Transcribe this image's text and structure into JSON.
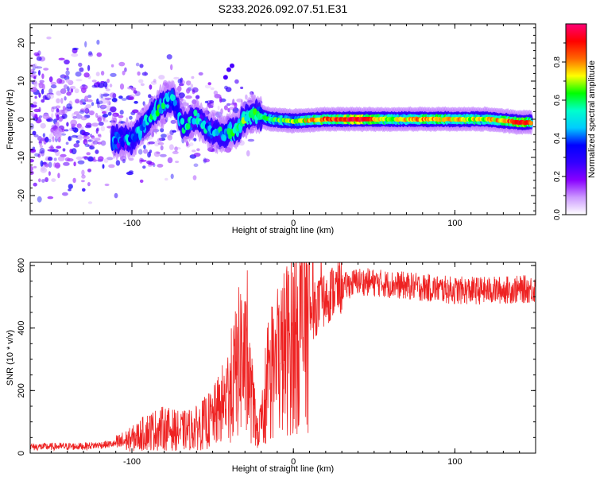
{
  "title": "S233.2026.092.07.51.E31",
  "chart_data": [
    {
      "type": "heatmap",
      "name": "spectrogram",
      "xlabel": "Height of straight line (km)",
      "ylabel": "Frequency (Hz)",
      "xlim": [
        -163,
        150
      ],
      "ylim": [
        -25,
        25
      ],
      "x_ticks": [
        -100,
        0,
        100
      ],
      "y_ticks": [
        -20,
        -10,
        0,
        10,
        20
      ],
      "colorbar": {
        "label": "Normalized spectral amplitude",
        "range": [
          0,
          1
        ],
        "ticks": [
          "0.0",
          "0.2",
          "0.4",
          "0.6",
          "0.8"
        ],
        "stops": [
          "#ffffff",
          "#cc99ff",
          "#8800ff",
          "#3300ff",
          "#0000ff",
          "#00ccff",
          "#00ffcc",
          "#00ff00",
          "#ffff00",
          "#ff6600",
          "#ff0000",
          "#ff0077"
        ]
      },
      "ridge": [
        {
          "x": -112,
          "y": -5.5,
          "amp": 0.35
        },
        {
          "x": -100,
          "y": -5,
          "amp": 0.4
        },
        {
          "x": -92,
          "y": -1,
          "amp": 0.45
        },
        {
          "x": -82,
          "y": 3.5,
          "amp": 0.5
        },
        {
          "x": -75,
          "y": 6,
          "amp": 0.4
        },
        {
          "x": -68,
          "y": -2,
          "amp": 0.45
        },
        {
          "x": -60,
          "y": 0.5,
          "amp": 0.45
        },
        {
          "x": -52,
          "y": -3,
          "amp": 0.4
        },
        {
          "x": -44,
          "y": -4,
          "amp": 0.45
        },
        {
          "x": -36,
          "y": -3,
          "amp": 0.5
        },
        {
          "x": -30,
          "y": 0,
          "amp": 0.55
        },
        {
          "x": -24,
          "y": 1.5,
          "amp": 0.5
        },
        {
          "x": -15,
          "y": 0,
          "amp": 0.6
        },
        {
          "x": 0,
          "y": -0.5,
          "amp": 0.65
        },
        {
          "x": 20,
          "y": 0,
          "amp": 0.85
        },
        {
          "x": 40,
          "y": 0,
          "amp": 0.95
        },
        {
          "x": 60,
          "y": 0,
          "amp": 0.7
        },
        {
          "x": 80,
          "y": 0,
          "amp": 0.8
        },
        {
          "x": 100,
          "y": 0,
          "amp": 0.75
        },
        {
          "x": 120,
          "y": 0,
          "amp": 0.7
        },
        {
          "x": 140,
          "y": -0.8,
          "amp": 0.9
        },
        {
          "x": 148,
          "y": -0.8,
          "amp": 0.8
        }
      ],
      "scatter_region": {
        "xmin": -163,
        "xmax": -20,
        "ymin": -25,
        "ymax": 25,
        "amp_max": 0.3
      }
    },
    {
      "type": "line",
      "name": "snr",
      "xlabel": "Height of straight line (km)",
      "ylabel": "SNR (10 * v/v)",
      "xlim": [
        -163,
        150
      ],
      "ylim": [
        0,
        610
      ],
      "x_ticks": [
        -100,
        0,
        100
      ],
      "y_ticks": [
        0,
        200,
        400,
        600
      ],
      "color": "#ee2222",
      "envelope": [
        {
          "x": -163,
          "y": 20
        },
        {
          "x": -130,
          "y": 22
        },
        {
          "x": -110,
          "y": 30
        },
        {
          "x": -100,
          "y": 45
        },
        {
          "x": -90,
          "y": 70
        },
        {
          "x": -80,
          "y": 80
        },
        {
          "x": -70,
          "y": 70
        },
        {
          "x": -60,
          "y": 80
        },
        {
          "x": -50,
          "y": 110
        },
        {
          "x": -42,
          "y": 170
        },
        {
          "x": -36,
          "y": 250
        },
        {
          "x": -32,
          "y": 320
        },
        {
          "x": -28,
          "y": 240
        },
        {
          "x": -22,
          "y": 60
        },
        {
          "x": -18,
          "y": 130
        },
        {
          "x": -12,
          "y": 260
        },
        {
          "x": -5,
          "y": 330
        },
        {
          "x": 5,
          "y": 400
        },
        {
          "x": 15,
          "y": 470
        },
        {
          "x": 25,
          "y": 520
        },
        {
          "x": 40,
          "y": 550
        },
        {
          "x": 60,
          "y": 540
        },
        {
          "x": 80,
          "y": 530
        },
        {
          "x": 100,
          "y": 520
        },
        {
          "x": 120,
          "y": 520
        },
        {
          "x": 150,
          "y": 525
        }
      ]
    }
  ]
}
